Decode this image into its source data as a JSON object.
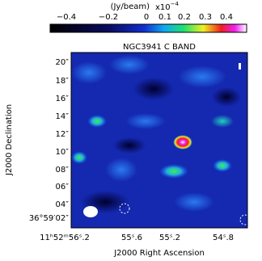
{
  "colorbar": {
    "unit": "(Jy/beam)",
    "scale_base": "x10",
    "scale_exp": "−4",
    "ticks": [
      "−0.4",
      "−0.2",
      "0",
      "0.1",
      "0.2",
      "0.3",
      "0.4"
    ]
  },
  "plot": {
    "title": "NGC3941 C BAND",
    "x_label": "J2000 Right Ascension",
    "y_label": "J2000 Declination",
    "x_ticks": [
      "11ʰ52ᵐ56ˢ.2",
      "55ˢ.6",
      "55ˢ.2",
      "54ˢ.8"
    ],
    "y_ticks": [
      "20″",
      "18″",
      "16″",
      "14″",
      "12″",
      "10″",
      "08″",
      "06″",
      "04″",
      "36°59′02″"
    ]
  }
}
